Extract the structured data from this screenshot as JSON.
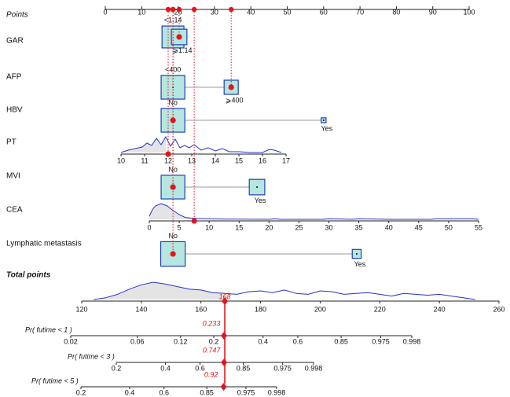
{
  "chart_data": {
    "type": "nomogram",
    "colors": {
      "box": "#b5e6df",
      "border": "#1f3fb8",
      "curve": "#2233cc",
      "marker": "#e3141b",
      "link": "#9a9a9a",
      "fill": "#e4e4e4"
    },
    "points_axis": {
      "label": "Points",
      "xlim": [
        0,
        100
      ],
      "xticks": [
        0,
        10,
        20,
        30,
        40,
        50,
        60,
        70,
        80,
        90,
        100
      ]
    },
    "rows": [
      {
        "label": "GAR",
        "kind": "categorical",
        "selected": 1,
        "levels": [
          {
            "label": "<1.14",
            "points": 18.6,
            "proportion": 0.6
          },
          {
            "label": "⩾1.14",
            "points": 20.3,
            "proportion": 0.3
          }
        ]
      },
      {
        "label": "AFP",
        "kind": "categorical",
        "selected": 1,
        "levels": [
          {
            "label": "<400",
            "points": 18.6,
            "proportion": 0.7
          },
          {
            "label": "⩾400",
            "points": 34.6,
            "proportion": 0.25
          }
        ]
      },
      {
        "label": "HBV",
        "kind": "categorical",
        "selected": 0,
        "levels": [
          {
            "label": "No",
            "points": 18.6,
            "proportion": 0.7
          },
          {
            "label": "Yes",
            "points": 60,
            "proportion": 0.03
          }
        ]
      },
      {
        "label": "PT",
        "kind": "continuous",
        "value": 12,
        "xlim": [
          10,
          17
        ],
        "xticks": [
          10,
          11,
          12,
          13,
          14,
          15,
          16,
          17
        ],
        "density": {
          "x": [
            10,
            10.3,
            10.6,
            10.9,
            11.1,
            11.3,
            11.5,
            11.7,
            11.9,
            12.1,
            12.3,
            12.5,
            12.7,
            12.9,
            13.1,
            13.4,
            13.7,
            14,
            14.3,
            14.6,
            15,
            15.5,
            16,
            16.3,
            16.5,
            16.8
          ],
          "y": [
            0,
            0.15,
            0.25,
            0.35,
            0.6,
            0.45,
            0.9,
            0.5,
            1,
            0.4,
            0.85,
            0.3,
            0.45,
            0.3,
            0.5,
            0.15,
            0.3,
            0.1,
            0.25,
            0.05,
            0.05,
            0,
            0,
            0.2,
            0.15,
            0
          ]
        }
      },
      {
        "label": "MVI",
        "kind": "categorical",
        "selected": 0,
        "levels": [
          {
            "label": "No",
            "points": 18.6,
            "proportion": 0.7
          },
          {
            "label": "Yes",
            "points": 41.7,
            "proportion": 0.3
          }
        ]
      },
      {
        "label": "CEA",
        "kind": "continuous",
        "value": 7.5,
        "xlim": [
          0,
          55
        ],
        "xticks": [
          0,
          5,
          10,
          15,
          20,
          25,
          30,
          35,
          40,
          45,
          50,
          55
        ],
        "density": {
          "x": [
            0,
            0.5,
            1,
            2,
            3,
            4,
            5,
            6,
            7,
            8,
            10,
            12,
            15,
            20,
            21,
            22,
            25,
            29,
            30,
            34,
            35,
            40,
            47,
            48,
            54,
            55
          ],
          "y": [
            0.2,
            0.6,
            0.85,
            1,
            0.85,
            0.55,
            0.3,
            0.12,
            0.08,
            0.05,
            0.04,
            0.02,
            0.01,
            0,
            0.04,
            0,
            0,
            0,
            0.04,
            0,
            0.04,
            0,
            0,
            0.04,
            0.04,
            0
          ]
        }
      },
      {
        "label": "Lymphatic metastasis",
        "kind": "categorical",
        "selected": 0,
        "levels": [
          {
            "label": "No",
            "points": 18.6,
            "proportion": 0.75
          },
          {
            "label": "Yes",
            "points": 69.1,
            "proportion": 0.1
          }
        ]
      }
    ],
    "total": {
      "label": "Total points",
      "value": 168,
      "xlim": [
        120,
        260
      ],
      "xticks": [
        120,
        140,
        160,
        180,
        200,
        220,
        240,
        260
      ],
      "density": {
        "x": [
          124,
          128,
          132,
          136,
          140,
          144,
          148,
          152,
          156,
          160,
          164,
          168,
          172,
          176,
          180,
          184,
          188,
          192,
          196,
          200,
          204,
          208,
          212,
          216,
          220,
          224,
          228,
          232,
          236,
          240,
          244,
          248,
          252
        ],
        "y": [
          0,
          0.1,
          0.3,
          0.6,
          0.85,
          1,
          0.9,
          0.75,
          0.6,
          0.55,
          0.4,
          0.35,
          0.3,
          0.45,
          0.5,
          0.4,
          0.55,
          0.35,
          0.3,
          0.5,
          0.45,
          0.3,
          0.35,
          0.4,
          0.3,
          0.2,
          0.35,
          0.3,
          0.25,
          0.3,
          0.2,
          0.1,
          0
        ]
      }
    },
    "probabilities": [
      {
        "label": "Pr( futime < 1 )",
        "value": 0.233,
        "scale": "cloglog",
        "xlim": [
          0.02,
          0.998
        ],
        "xticks": [
          0.02,
          0.06,
          0.12,
          0.2,
          0.4,
          0.6,
          0.85,
          0.975,
          0.998
        ]
      },
      {
        "label": "Pr( futime < 3 )",
        "value": 0.747,
        "scale": "cloglog",
        "xlim": [
          0.2,
          0.998
        ],
        "xticks": [
          0.2,
          0.4,
          0.6,
          0.85,
          0.975,
          0.998
        ]
      },
      {
        "label": "Pr( futime < 5 )",
        "value": 0.92,
        "scale": "cloglog",
        "xlim": [
          0.2,
          0.998
        ],
        "xticks": [
          0.2,
          0.4,
          0.6,
          0.85,
          0.975,
          0.998
        ]
      }
    ]
  }
}
